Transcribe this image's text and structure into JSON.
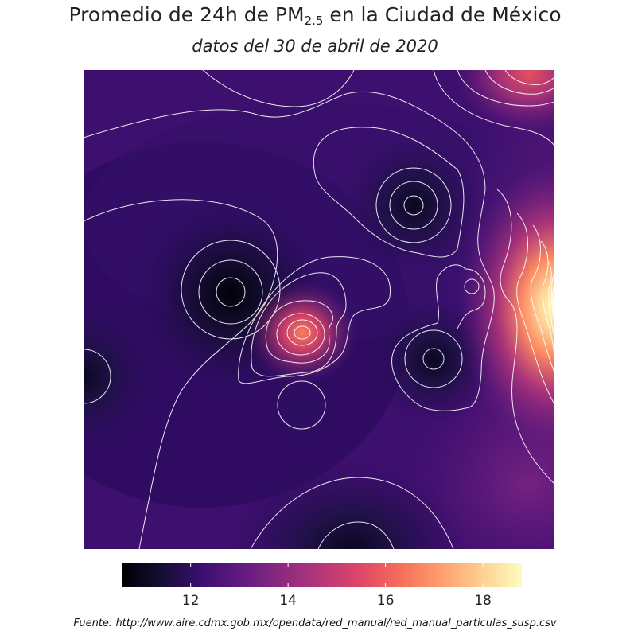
{
  "title": {
    "main": "Promedio de 24h de PM",
    "sub": "2.5",
    "rest": " en la Ciudad de México"
  },
  "subtitle": "datos del 30 de abril de 2020",
  "source": "Fuente: http://www.aire.cdmx.gob.mx/opendata/red_manual/red_manual_particulas_susp.csv",
  "chart_data": {
    "type": "heatmap",
    "variable": "PM2.5",
    "colormap": "magma",
    "colorbar": {
      "min": 10.6,
      "max": 18.8,
      "ticks": [
        12,
        14,
        16,
        18
      ]
    },
    "background_level": 13.1,
    "features": [
      {
        "kind": "low",
        "x": 0.31,
        "y": 0.47,
        "value": 10.6
      },
      {
        "kind": "low",
        "x": 0.7,
        "y": 0.28,
        "value": 11.2
      },
      {
        "kind": "low",
        "x": 0.75,
        "y": 0.61,
        "value": 11.3
      },
      {
        "kind": "low",
        "x": 0.0,
        "y": 0.64,
        "value": 11.6
      },
      {
        "kind": "low",
        "x": 0.57,
        "y": 1.0,
        "value": 11.4
      },
      {
        "kind": "low",
        "x": 0.46,
        "y": 0.72,
        "value": 12.5
      },
      {
        "kind": "high",
        "x": 0.47,
        "y": 0.55,
        "value": 16.3
      },
      {
        "kind": "high",
        "x": 1.0,
        "y": 0.5,
        "value": 18.8
      },
      {
        "kind": "high",
        "x": 0.96,
        "y": 0.01,
        "value": 16.5
      },
      {
        "kind": "high",
        "x": 0.83,
        "y": 0.45,
        "value": 14.8
      }
    ]
  }
}
